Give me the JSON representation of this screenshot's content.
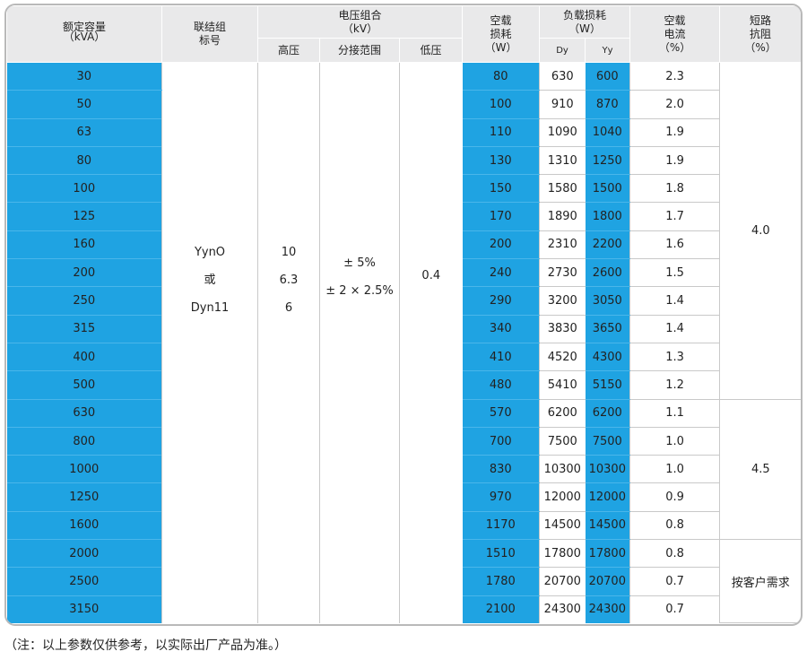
{
  "header": {
    "capacity": [
      "额定容量",
      "（kVA）"
    ],
    "connection": [
      "联结组",
      "标号"
    ],
    "voltage_group": [
      "电压组合",
      "（kV）"
    ],
    "hv": "高压",
    "tap": "分接范围",
    "lv": "低压",
    "no_load_loss": [
      "空载",
      "损耗",
      "（W）"
    ],
    "load_loss": [
      "负载损耗",
      "（W）"
    ],
    "dy": "Dy",
    "yy": "Yy",
    "no_load_current": [
      "空载",
      "电流",
      "（%）"
    ],
    "impedance": [
      "短路",
      "抗阻",
      "（%）"
    ]
  },
  "rows": [
    {
      "kva": "30",
      "noload": "80",
      "dy": "630",
      "yy": "600",
      "current": "2.3"
    },
    {
      "kva": "50",
      "noload": "100",
      "dy": "910",
      "yy": "870",
      "current": "2.0"
    },
    {
      "kva": "63",
      "noload": "110",
      "dy": "1090",
      "yy": "1040",
      "current": "1.9"
    },
    {
      "kva": "80",
      "noload": "130",
      "dy": "1310",
      "yy": "1250",
      "current": "1.9"
    },
    {
      "kva": "100",
      "noload": "150",
      "dy": "1580",
      "yy": "1500",
      "current": "1.8"
    },
    {
      "kva": "125",
      "noload": "170",
      "dy": "1890",
      "yy": "1800",
      "current": "1.7"
    },
    {
      "kva": "160",
      "noload": "200",
      "dy": "2310",
      "yy": "2200",
      "current": "1.6"
    },
    {
      "kva": "200",
      "noload": "240",
      "dy": "2730",
      "yy": "2600",
      "current": "1.5"
    },
    {
      "kva": "250",
      "noload": "290",
      "dy": "3200",
      "yy": "3050",
      "current": "1.4"
    },
    {
      "kva": "315",
      "noload": "340",
      "dy": "3830",
      "yy": "3650",
      "current": "1.4"
    },
    {
      "kva": "400",
      "noload": "410",
      "dy": "4520",
      "yy": "4300",
      "current": "1.3"
    },
    {
      "kva": "500",
      "noload": "480",
      "dy": "5410",
      "yy": "5150",
      "current": "1.2"
    },
    {
      "kva": "630",
      "noload": "570",
      "dy": "6200",
      "yy": "6200",
      "current": "1.1"
    },
    {
      "kva": "800",
      "noload": "700",
      "dy": "7500",
      "yy": "7500",
      "current": "1.0"
    },
    {
      "kva": "1000",
      "noload": "830",
      "dy": "10300",
      "yy": "10300",
      "current": "1.0"
    },
    {
      "kva": "1250",
      "noload": "970",
      "dy": "12000",
      "yy": "12000",
      "current": "0.9"
    },
    {
      "kva": "1600",
      "noload": "1170",
      "dy": "14500",
      "yy": "14500",
      "current": "0.8"
    },
    {
      "kva": "2000",
      "noload": "1510",
      "dy": "17800",
      "yy": "17800",
      "current": "0.8"
    },
    {
      "kva": "2500",
      "noload": "1780",
      "dy": "20700",
      "yy": "20700",
      "current": "0.7"
    },
    {
      "kva": "3150",
      "noload": "2100",
      "dy": "24300",
      "yy": "24300",
      "current": "0.7"
    }
  ],
  "merged": {
    "connection": [
      "YynO",
      "或",
      "Dyn11"
    ],
    "hv": [
      "10",
      "6.3",
      "6"
    ],
    "tap": [
      "± 5%",
      "± 2 × 2.5%"
    ],
    "lv": "0.4",
    "impedance": [
      {
        "value": "4.0",
        "span": 12
      },
      {
        "value": "4.5",
        "span": 5
      },
      {
        "value": "按客户需求",
        "span": 3
      }
    ]
  },
  "colors": {
    "accent": "#1fa3e2",
    "header_bg": "#e9e9ea"
  },
  "note": "（注：以上参数仅供参考，以实际出厂产品为准。）"
}
